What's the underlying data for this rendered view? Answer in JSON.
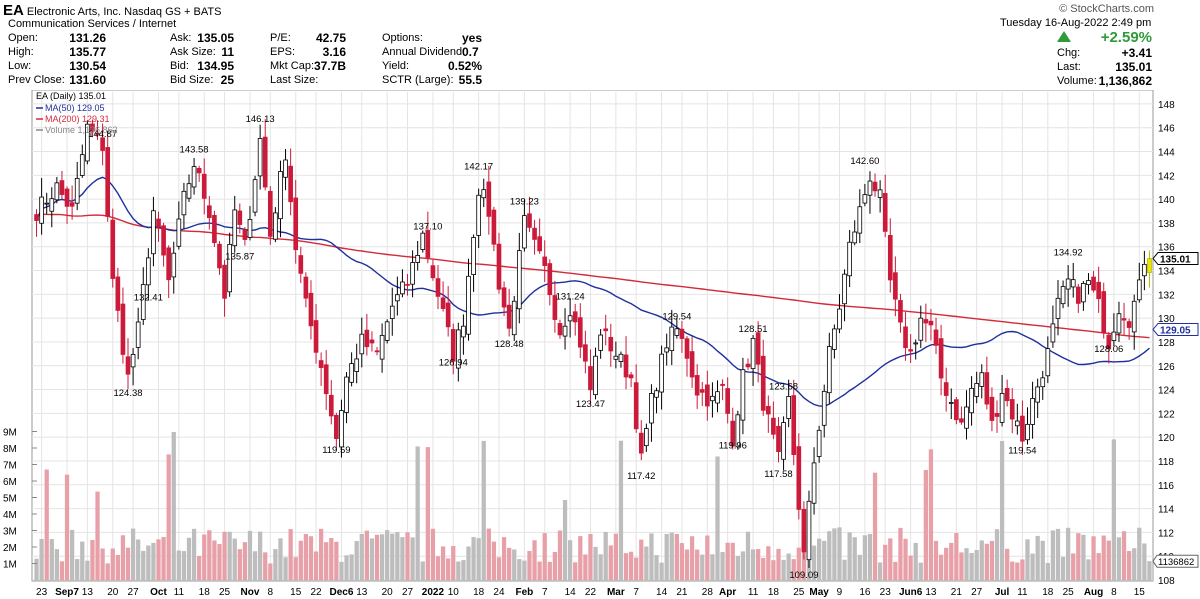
{
  "header": {
    "symbol": "EA",
    "company": "Electronic Arts, Inc.",
    "exchange": "Nasdaq GS + BATS",
    "sector": "Communication Services / Internet",
    "watermark": "© StockCharts.com",
    "date": "Tuesday  16-Aug-2022  2:49 pm",
    "change_pct": "+2.59%",
    "stats": {
      "open_label": "Open:",
      "open": "131.26",
      "high_label": "High:",
      "high": "135.77",
      "low_label": "Low:",
      "low": "130.54",
      "prev_label": "Prev Close:",
      "prev": "131.60",
      "ask_label": "Ask:",
      "ask": "135.05",
      "asksize_label": "Ask Size:",
      "asksize": "11",
      "bid_label": "Bid:",
      "bid": "134.95",
      "bidsize_label": "Bid Size:",
      "bidsize": "25",
      "pe_label": "P/E:",
      "pe": "42.75",
      "eps_label": "EPS:",
      "eps": "3.16",
      "mktcap_label": "Mkt Cap:",
      "mktcap": "37.7B",
      "lastsize_label": "Last Size:",
      "lastsize": "",
      "options_label": "Options:",
      "options": "yes",
      "dividend_label": "Annual Dividend:",
      "dividend": "0.7",
      "yield_label": "Yield:",
      "yield": "0.52%",
      "sctr_label": "SCTR (Large):",
      "sctr": "55.5",
      "chg_label": "Chg:",
      "chg": "+3.41",
      "last_label": "Last:",
      "last": "135.01",
      "volume_label": "Volume:",
      "volume": "1,136,862"
    }
  },
  "colors": {
    "up": "#000000",
    "down": "#cc1a3a",
    "ma50": "#1f2f9c",
    "ma200": "#d22a3a",
    "vol_up": "#bdbdbd",
    "vol_down": "#e8a0a8",
    "grid": "#e4e4e4",
    "last_candle": "#e6e600",
    "change_up": "#2e9a3a"
  },
  "chart_data": {
    "type": "candlestick",
    "title": "EA (Daily) 135.01",
    "legend": [
      {
        "label": "MA(50) 129.05",
        "color": "#1f2f9c"
      },
      {
        "label": "MA(200) 129.31",
        "color": "#d22a3a"
      },
      {
        "label": "Volume 1,136,862",
        "color": "#888888"
      }
    ],
    "price_axis": {
      "min": 108,
      "max": 149,
      "ticks": [
        108,
        110,
        112,
        114,
        116,
        118,
        120,
        122,
        124,
        126,
        128,
        130,
        132,
        134,
        136,
        138,
        140,
        142,
        144,
        146,
        148
      ]
    },
    "volume_axis": {
      "max_m": 10,
      "ticks": [
        1,
        2,
        3,
        4,
        5,
        6,
        7,
        8,
        9
      ],
      "tick_labels": [
        "1M",
        "2M",
        "3M",
        "4M",
        "5M",
        "6M",
        "7M",
        "8M",
        "9M"
      ]
    },
    "x_labels": [
      "23",
      "Sep7",
      "13",
      "20",
      "27",
      "Oct",
      "11",
      "18",
      "25",
      "Nov",
      "8",
      "15",
      "22",
      "Dec6",
      "13",
      "20",
      "27",
      "2022",
      "10",
      "18",
      "24",
      "Feb",
      "7",
      "14",
      "22",
      "Mar",
      "7",
      "14",
      "21",
      "28",
      "Apr",
      "11",
      "18",
      "25",
      "May",
      "9",
      "16",
      "23",
      "Jun6",
      "13",
      "21",
      "27",
      "Jul",
      "11",
      "18",
      "25",
      "Aug",
      "8",
      "15"
    ],
    "annotations": [
      {
        "i": 13,
        "value": "144.87",
        "pos": "above"
      },
      {
        "i": 18,
        "value": "124.38",
        "pos": "below"
      },
      {
        "i": 22,
        "value": "132.41",
        "pos": "below"
      },
      {
        "i": 31,
        "value": "143.58",
        "pos": "above"
      },
      {
        "i": 40,
        "value": "135.87",
        "pos": "below"
      },
      {
        "i": 44,
        "value": "146.13",
        "pos": "above"
      },
      {
        "i": 59,
        "value": "119.59",
        "pos": "below"
      },
      {
        "i": 77,
        "value": "137.10",
        "pos": "above"
      },
      {
        "i": 82,
        "value": "126.94",
        "pos": "below"
      },
      {
        "i": 87,
        "value": "142.17",
        "pos": "above"
      },
      {
        "i": 93,
        "value": "128.48",
        "pos": "below"
      },
      {
        "i": 96,
        "value": "139.23",
        "pos": "above"
      },
      {
        "i": 105,
        "value": "131.24",
        "pos": "above"
      },
      {
        "i": 109,
        "value": "123.47",
        "pos": "below"
      },
      {
        "i": 119,
        "value": "117.42",
        "pos": "below"
      },
      {
        "i": 126,
        "value": "129.54",
        "pos": "above"
      },
      {
        "i": 137,
        "value": "119.96",
        "pos": "below"
      },
      {
        "i": 141,
        "value": "128.51",
        "pos": "above"
      },
      {
        "i": 146,
        "value": "117.58",
        "pos": "below"
      },
      {
        "i": 147,
        "value": "123.68",
        "pos": "above"
      },
      {
        "i": 151,
        "value": "109.09",
        "pos": "below"
      },
      {
        "i": 163,
        "value": "142.60",
        "pos": "above"
      },
      {
        "i": 194,
        "value": "119.54",
        "pos": "below"
      },
      {
        "i": 203,
        "value": "134.92",
        "pos": "above"
      },
      {
        "i": 211,
        "value": "128.06",
        "pos": "below"
      }
    ],
    "price_tags": [
      {
        "label": "135.01",
        "value": 135.01,
        "color": "#000000"
      },
      {
        "label": "129.05",
        "value": 129.05,
        "color": "#1f2f9c"
      }
    ],
    "volume_tag": {
      "label": "1136862",
      "value_m": 1.14
    },
    "keypoints": [
      [
        0,
        139
      ],
      [
        4,
        141
      ],
      [
        7,
        139
      ],
      [
        10,
        146
      ],
      [
        13,
        144.5
      ],
      [
        15,
        133
      ],
      [
        18,
        125
      ],
      [
        20,
        129
      ],
      [
        23,
        139
      ],
      [
        26,
        133
      ],
      [
        29,
        140
      ],
      [
        31,
        143
      ],
      [
        34,
        139
      ],
      [
        37,
        132
      ],
      [
        39,
        139
      ],
      [
        41,
        136
      ],
      [
        44,
        145
      ],
      [
        46,
        137
      ],
      [
        49,
        144
      ],
      [
        51,
        136
      ],
      [
        53,
        131
      ],
      [
        56,
        126
      ],
      [
        59,
        120
      ],
      [
        61,
        125
      ],
      [
        64,
        128
      ],
      [
        67,
        127
      ],
      [
        70,
        131
      ],
      [
        73,
        133
      ],
      [
        76,
        137
      ],
      [
        79,
        132
      ],
      [
        82,
        127
      ],
      [
        84,
        130
      ],
      [
        87,
        141
      ],
      [
        89,
        139
      ],
      [
        91,
        133
      ],
      [
        93,
        129
      ],
      [
        96,
        138
      ],
      [
        98,
        136
      ],
      [
        100,
        134
      ],
      [
        103,
        129
      ],
      [
        105,
        131
      ],
      [
        107,
        128
      ],
      [
        109,
        124
      ],
      [
        111,
        129
      ],
      [
        114,
        127
      ],
      [
        117,
        125
      ],
      [
        119,
        118
      ],
      [
        121,
        123
      ],
      [
        124,
        128
      ],
      [
        126,
        129
      ],
      [
        128,
        127
      ],
      [
        130,
        124
      ],
      [
        133,
        123
      ],
      [
        135,
        124
      ],
      [
        137,
        120
      ],
      [
        139,
        125
      ],
      [
        141,
        128
      ],
      [
        143,
        123
      ],
      [
        146,
        118
      ],
      [
        148,
        123
      ],
      [
        151,
        110
      ],
      [
        153,
        118
      ],
      [
        156,
        127
      ],
      [
        158,
        131
      ],
      [
        160,
        136
      ],
      [
        162,
        139
      ],
      [
        164,
        142
      ],
      [
        166,
        140
      ],
      [
        168,
        133
      ],
      [
        170,
        129
      ],
      [
        172,
        127
      ],
      [
        174,
        130
      ],
      [
        176,
        129
      ],
      [
        178,
        125
      ],
      [
        180,
        123
      ],
      [
        182,
        121
      ],
      [
        184,
        124
      ],
      [
        186,
        125
      ],
      [
        188,
        121
      ],
      [
        190,
        124
      ],
      [
        192,
        122
      ],
      [
        194,
        120
      ],
      [
        196,
        123
      ],
      [
        199,
        127
      ],
      [
        201,
        131
      ],
      [
        203,
        133
      ],
      [
        205,
        132
      ],
      [
        207,
        133
      ],
      [
        209,
        131
      ],
      [
        211,
        128
      ],
      [
        213,
        131
      ],
      [
        215,
        130
      ],
      [
        217,
        132.5
      ],
      [
        218,
        135.01
      ]
    ]
  }
}
